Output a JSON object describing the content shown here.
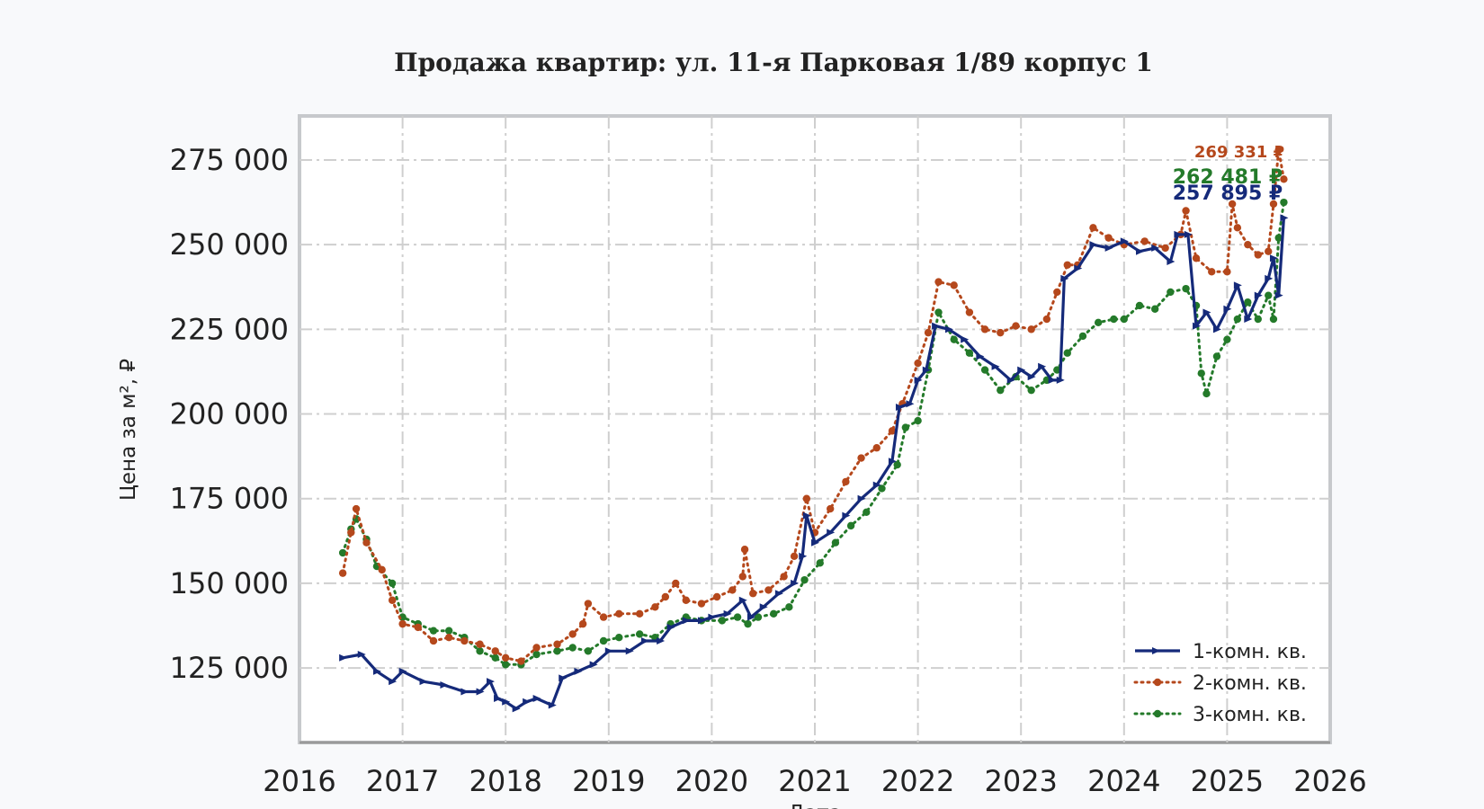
{
  "chart_data": {
    "type": "line",
    "title": "Продажа квартир: ул. 11-я Парковая 1/89 корпус 1",
    "xlabel": "Дата",
    "ylabel": "Цена за м², ₽",
    "xlim": [
      2016.0,
      2026.0
    ],
    "ylim": [
      103000,
      288000
    ],
    "x_ticks": [
      "2016",
      "2017",
      "2018",
      "2019",
      "2020",
      "2021",
      "2022",
      "2023",
      "2024",
      "2025",
      "2026"
    ],
    "y_ticks": [
      {
        "value": 125000,
        "label": "125 000"
      },
      {
        "value": 150000,
        "label": "150 000"
      },
      {
        "value": 175000,
        "label": "175 000"
      },
      {
        "value": 200000,
        "label": "200 000"
      },
      {
        "value": 225000,
        "label": "225 000"
      },
      {
        "value": 250000,
        "label": "250 000"
      },
      {
        "value": 275000,
        "label": "275 000"
      }
    ],
    "grid": true,
    "legend_position": "bottom-right",
    "series": [
      {
        "name": "1-комн. кв.",
        "color": "#152a7a",
        "style": "solid",
        "end_label": "257 895 ₽",
        "points": [
          [
            2016.42,
            128000
          ],
          [
            2016.6,
            129000
          ],
          [
            2016.75,
            124000
          ],
          [
            2016.9,
            121000
          ],
          [
            2017.0,
            124000
          ],
          [
            2017.2,
            121000
          ],
          [
            2017.4,
            120000
          ],
          [
            2017.6,
            118000
          ],
          [
            2017.75,
            118000
          ],
          [
            2017.85,
            121000
          ],
          [
            2017.92,
            116000
          ],
          [
            2018.0,
            115000
          ],
          [
            2018.1,
            113000
          ],
          [
            2018.2,
            115000
          ],
          [
            2018.3,
            116000
          ],
          [
            2018.45,
            114000
          ],
          [
            2018.55,
            122000
          ],
          [
            2018.7,
            124000
          ],
          [
            2018.85,
            126000
          ],
          [
            2019.0,
            130000
          ],
          [
            2019.2,
            130000
          ],
          [
            2019.35,
            133000
          ],
          [
            2019.5,
            133000
          ],
          [
            2019.6,
            137000
          ],
          [
            2019.75,
            139000
          ],
          [
            2019.9,
            139000
          ],
          [
            2020.0,
            140000
          ],
          [
            2020.15,
            141000
          ],
          [
            2020.3,
            145000
          ],
          [
            2020.38,
            140000
          ],
          [
            2020.5,
            143000
          ],
          [
            2020.65,
            147000
          ],
          [
            2020.8,
            150000
          ],
          [
            2020.88,
            158000
          ],
          [
            2020.92,
            170000
          ],
          [
            2021.0,
            162000
          ],
          [
            2021.15,
            165000
          ],
          [
            2021.3,
            170000
          ],
          [
            2021.45,
            175000
          ],
          [
            2021.6,
            179000
          ],
          [
            2021.75,
            186000
          ],
          [
            2021.82,
            202000
          ],
          [
            2021.92,
            203000
          ],
          [
            2022.0,
            210000
          ],
          [
            2022.08,
            213000
          ],
          [
            2022.17,
            226000
          ],
          [
            2022.3,
            225000
          ],
          [
            2022.45,
            222000
          ],
          [
            2022.6,
            217000
          ],
          [
            2022.75,
            214000
          ],
          [
            2022.9,
            210000
          ],
          [
            2023.0,
            213000
          ],
          [
            2023.1,
            211000
          ],
          [
            2023.2,
            214000
          ],
          [
            2023.3,
            210000
          ],
          [
            2023.38,
            210000
          ],
          [
            2023.42,
            240000
          ],
          [
            2023.55,
            243000
          ],
          [
            2023.7,
            250000
          ],
          [
            2023.85,
            249000
          ],
          [
            2024.0,
            251000
          ],
          [
            2024.15,
            248000
          ],
          [
            2024.3,
            249000
          ],
          [
            2024.45,
            245000
          ],
          [
            2024.52,
            253000
          ],
          [
            2024.62,
            253000
          ],
          [
            2024.7,
            226000
          ],
          [
            2024.8,
            230000
          ],
          [
            2024.9,
            225000
          ],
          [
            2025.0,
            231000
          ],
          [
            2025.1,
            238000
          ],
          [
            2025.2,
            228000
          ],
          [
            2025.3,
            235000
          ],
          [
            2025.4,
            240000
          ],
          [
            2025.45,
            246000
          ],
          [
            2025.5,
            235000
          ],
          [
            2025.55,
            257895
          ]
        ]
      },
      {
        "name": "2-комн. кв.",
        "color": "#b5481c",
        "style": "dotted",
        "end_label": "269 331 ₽",
        "points": [
          [
            2016.42,
            153000
          ],
          [
            2016.5,
            165000
          ],
          [
            2016.55,
            172000
          ],
          [
            2016.65,
            162000
          ],
          [
            2016.8,
            154000
          ],
          [
            2016.9,
            145000
          ],
          [
            2017.0,
            138000
          ],
          [
            2017.15,
            137000
          ],
          [
            2017.3,
            133000
          ],
          [
            2017.45,
            134000
          ],
          [
            2017.6,
            133000
          ],
          [
            2017.75,
            132000
          ],
          [
            2017.9,
            130000
          ],
          [
            2018.0,
            128000
          ],
          [
            2018.15,
            127000
          ],
          [
            2018.3,
            131000
          ],
          [
            2018.5,
            132000
          ],
          [
            2018.65,
            135000
          ],
          [
            2018.75,
            138000
          ],
          [
            2018.8,
            144000
          ],
          [
            2018.95,
            140000
          ],
          [
            2019.1,
            141000
          ],
          [
            2019.3,
            141000
          ],
          [
            2019.45,
            143000
          ],
          [
            2019.55,
            146000
          ],
          [
            2019.65,
            150000
          ],
          [
            2019.75,
            145000
          ],
          [
            2019.9,
            144000
          ],
          [
            2020.05,
            146000
          ],
          [
            2020.2,
            148000
          ],
          [
            2020.3,
            152000
          ],
          [
            2020.32,
            160000
          ],
          [
            2020.4,
            147000
          ],
          [
            2020.55,
            148000
          ],
          [
            2020.7,
            152000
          ],
          [
            2020.8,
            158000
          ],
          [
            2020.92,
            175000
          ],
          [
            2021.0,
            165000
          ],
          [
            2021.15,
            172000
          ],
          [
            2021.3,
            180000
          ],
          [
            2021.45,
            187000
          ],
          [
            2021.6,
            190000
          ],
          [
            2021.75,
            195000
          ],
          [
            2021.85,
            203000
          ],
          [
            2022.0,
            215000
          ],
          [
            2022.1,
            224000
          ],
          [
            2022.2,
            239000
          ],
          [
            2022.35,
            238000
          ],
          [
            2022.5,
            230000
          ],
          [
            2022.65,
            225000
          ],
          [
            2022.8,
            224000
          ],
          [
            2022.95,
            226000
          ],
          [
            2023.1,
            225000
          ],
          [
            2023.25,
            228000
          ],
          [
            2023.35,
            236000
          ],
          [
            2023.45,
            244000
          ],
          [
            2023.55,
            244000
          ],
          [
            2023.7,
            255000
          ],
          [
            2023.85,
            252000
          ],
          [
            2024.0,
            250000
          ],
          [
            2024.2,
            251000
          ],
          [
            2024.4,
            249000
          ],
          [
            2024.55,
            253000
          ],
          [
            2024.6,
            260000
          ],
          [
            2024.7,
            246000
          ],
          [
            2024.85,
            242000
          ],
          [
            2025.0,
            242000
          ],
          [
            2025.05,
            262000
          ],
          [
            2025.1,
            255000
          ],
          [
            2025.2,
            250000
          ],
          [
            2025.3,
            247000
          ],
          [
            2025.4,
            248000
          ],
          [
            2025.45,
            262000
          ],
          [
            2025.5,
            278000
          ],
          [
            2025.55,
            269331
          ]
        ]
      },
      {
        "name": "3-комн. кв.",
        "color": "#247a2a",
        "style": "dotted",
        "end_label": "262 481 ₽",
        "points": [
          [
            2016.42,
            159000
          ],
          [
            2016.5,
            166000
          ],
          [
            2016.55,
            169000
          ],
          [
            2016.65,
            163000
          ],
          [
            2016.75,
            155000
          ],
          [
            2016.9,
            150000
          ],
          [
            2017.0,
            140000
          ],
          [
            2017.15,
            138000
          ],
          [
            2017.3,
            136000
          ],
          [
            2017.45,
            136000
          ],
          [
            2017.6,
            134000
          ],
          [
            2017.75,
            130000
          ],
          [
            2017.9,
            128000
          ],
          [
            2018.0,
            126000
          ],
          [
            2018.15,
            126000
          ],
          [
            2018.3,
            129000
          ],
          [
            2018.5,
            130000
          ],
          [
            2018.65,
            131000
          ],
          [
            2018.8,
            130000
          ],
          [
            2018.95,
            133000
          ],
          [
            2019.1,
            134000
          ],
          [
            2019.3,
            135000
          ],
          [
            2019.45,
            134000
          ],
          [
            2019.6,
            138000
          ],
          [
            2019.75,
            140000
          ],
          [
            2019.9,
            139000
          ],
          [
            2020.1,
            139000
          ],
          [
            2020.25,
            140000
          ],
          [
            2020.35,
            138000
          ],
          [
            2020.45,
            140000
          ],
          [
            2020.6,
            141000
          ],
          [
            2020.75,
            143000
          ],
          [
            2020.9,
            151000
          ],
          [
            2021.05,
            156000
          ],
          [
            2021.2,
            162000
          ],
          [
            2021.35,
            167000
          ],
          [
            2021.5,
            171000
          ],
          [
            2021.65,
            178000
          ],
          [
            2021.8,
            185000
          ],
          [
            2021.88,
            196000
          ],
          [
            2022.0,
            198000
          ],
          [
            2022.1,
            213000
          ],
          [
            2022.2,
            230000
          ],
          [
            2022.35,
            222000
          ],
          [
            2022.5,
            218000
          ],
          [
            2022.65,
            213000
          ],
          [
            2022.8,
            207000
          ],
          [
            2022.95,
            211000
          ],
          [
            2023.1,
            207000
          ],
          [
            2023.25,
            210000
          ],
          [
            2023.35,
            213000
          ],
          [
            2023.45,
            218000
          ],
          [
            2023.6,
            223000
          ],
          [
            2023.75,
            227000
          ],
          [
            2023.9,
            228000
          ],
          [
            2024.0,
            228000
          ],
          [
            2024.15,
            232000
          ],
          [
            2024.3,
            231000
          ],
          [
            2024.45,
            236000
          ],
          [
            2024.6,
            237000
          ],
          [
            2024.7,
            232000
          ],
          [
            2024.75,
            212000
          ],
          [
            2024.8,
            206000
          ],
          [
            2024.9,
            217000
          ],
          [
            2025.0,
            222000
          ],
          [
            2025.1,
            228000
          ],
          [
            2025.2,
            233000
          ],
          [
            2025.3,
            228000
          ],
          [
            2025.4,
            235000
          ],
          [
            2025.45,
            228000
          ],
          [
            2025.5,
            252000
          ],
          [
            2025.55,
            262481
          ]
        ]
      }
    ]
  }
}
